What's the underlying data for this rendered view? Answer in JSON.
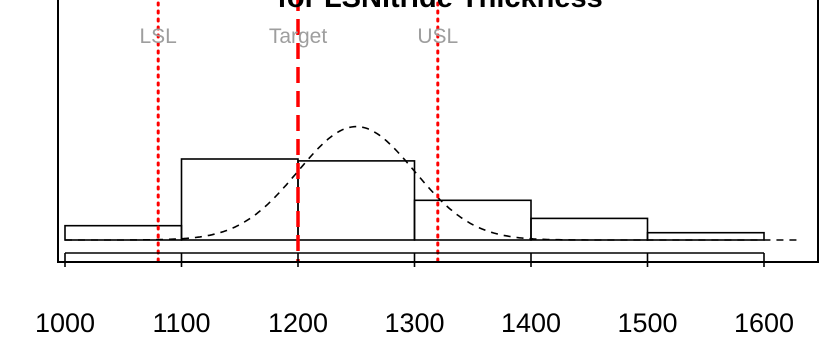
{
  "chart_data": {
    "type": "bar",
    "title": "for LSNitride  Thickness",
    "xlabel": "",
    "ylabel": "",
    "xlim": [
      1000,
      1650
    ],
    "x_ticks": [
      "1000",
      "1100",
      "1200",
      "1300",
      "1400",
      "1500",
      "1600"
    ],
    "bins": [
      {
        "from": 1000,
        "to": 1100,
        "density": 0.053
      },
      {
        "from": 1100,
        "to": 1200,
        "density": 0.3
      },
      {
        "from": 1200,
        "to": 1300,
        "density": 0.293
      },
      {
        "from": 1300,
        "to": 1400,
        "density": 0.147
      },
      {
        "from": 1400,
        "to": 1500,
        "density": 0.08
      },
      {
        "from": 1500,
        "to": 1600,
        "density": 0.027
      }
    ],
    "normal_curve": {
      "mean": 1250,
      "sd": 50,
      "x_range": [
        1000,
        1630
      ]
    },
    "spec_lines": [
      {
        "name": "LSL",
        "value": 1080,
        "color": "#ff0000",
        "style": "dotted"
      },
      {
        "name": "Target",
        "value": 1200,
        "color": "#ff0000",
        "style": "dashed"
      },
      {
        "name": "USL",
        "value": 1320,
        "color": "#ff0000",
        "style": "dotted"
      }
    ],
    "grid": false,
    "legend": "none"
  }
}
